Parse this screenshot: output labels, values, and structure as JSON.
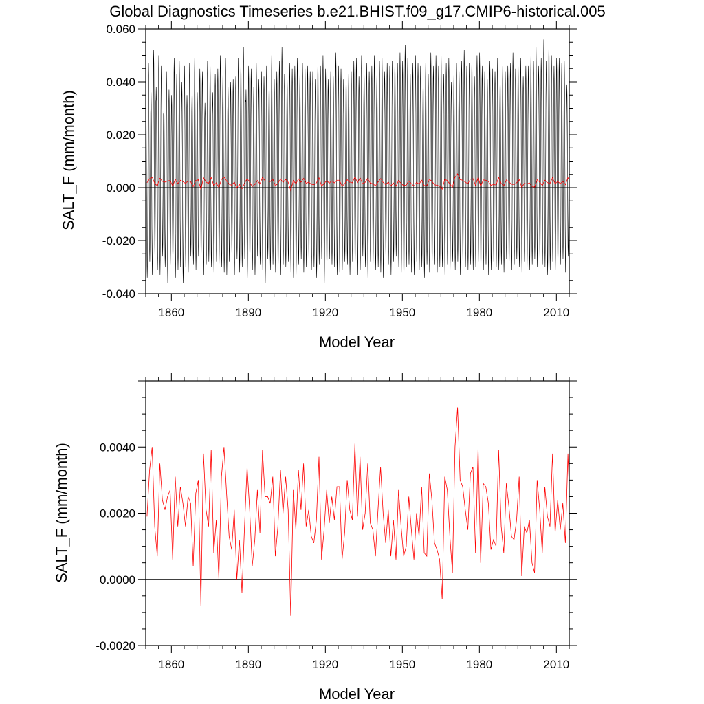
{
  "title": "Global Diagnostics Timeseries b.e21.BHIST.f09_g17.CMIP6-historical.005",
  "colors": {
    "monthly": "#000000",
    "annual": "#ff0000",
    "zero_line": "#000000"
  },
  "chart_data": [
    {
      "type": "line",
      "xlabel": "Model Year",
      "ylabel": "SALT_F (mm/month)",
      "xlim": [
        1850,
        2015
      ],
      "ylim": [
        -0.04,
        0.06
      ],
      "xticks": [
        1860,
        1890,
        1920,
        1950,
        1980,
        2010
      ],
      "xtick_labels": [
        "1860",
        "1890",
        "1920",
        "1950",
        "1980",
        "2010"
      ],
      "yticks": [
        -0.04,
        -0.02,
        0.0,
        0.02,
        0.04,
        0.06
      ],
      "ytick_labels": [
        "-0.040",
        "-0.020",
        "0.000",
        "0.020",
        "0.040",
        "0.060"
      ],
      "series": [
        {
          "kind": "monthly",
          "note_pattern": "seasonal cycle each year",
          "annual_max": [
            0.032,
            0.047,
            0.036,
            0.052,
            0.038,
            0.05,
            0.046,
            0.031,
            0.044,
            0.037,
            0.035,
            0.049,
            0.043,
            0.048,
            0.04,
            0.046,
            0.035,
            0.047,
            0.038,
            0.049,
            0.036,
            0.045,
            0.044,
            0.032,
            0.048,
            0.047,
            0.036,
            0.043,
            0.045,
            0.05,
            0.043,
            0.049,
            0.038,
            0.04,
            0.041,
            0.042,
            0.049,
            0.048,
            0.053,
            0.037,
            0.046,
            0.045,
            0.038,
            0.047,
            0.041,
            0.044,
            0.042,
            0.046,
            0.04,
            0.05,
            0.041,
            0.044,
            0.048,
            0.053,
            0.043,
            0.042,
            0.047,
            0.045,
            0.046,
            0.049,
            0.043,
            0.047,
            0.045,
            0.046,
            0.044,
            0.044,
            0.041,
            0.048,
            0.046,
            0.05,
            0.045,
            0.041,
            0.044,
            0.042,
            0.051,
            0.046,
            0.045,
            0.041,
            0.042,
            0.043,
            0.044,
            0.048,
            0.049,
            0.042,
            0.05,
            0.044,
            0.047,
            0.044,
            0.046,
            0.05,
            0.043,
            0.048,
            0.049,
            0.044,
            0.047,
            0.046,
            0.048,
            0.048,
            0.047,
            0.051,
            0.048,
            0.054,
            0.049,
            0.043,
            0.047,
            0.05,
            0.047,
            0.046,
            0.041,
            0.047,
            0.043,
            0.051,
            0.046,
            0.05,
            0.046,
            0.051,
            0.043,
            0.047,
            0.049,
            0.04,
            0.043,
            0.047,
            0.044,
            0.048,
            0.052,
            0.046,
            0.047,
            0.049,
            0.042,
            0.05,
            0.051,
            0.046,
            0.044,
            0.041,
            0.048,
            0.045,
            0.044,
            0.049,
            0.042,
            0.046,
            0.044,
            0.046,
            0.047,
            0.051,
            0.045,
            0.047,
            0.049,
            0.042,
            0.046,
            0.046,
            0.05,
            0.048,
            0.053,
            0.046,
            0.049,
            0.056,
            0.048,
            0.055,
            0.05,
            0.046,
            0.049,
            0.049,
            0.047,
            0.048,
            0.039
          ],
          "annual_min": [
            -0.034,
            -0.028,
            -0.033,
            -0.027,
            -0.031,
            -0.033,
            -0.026,
            -0.03,
            -0.036,
            -0.029,
            -0.028,
            -0.034,
            -0.031,
            -0.03,
            -0.036,
            -0.03,
            -0.032,
            -0.026,
            -0.029,
            -0.031,
            -0.026,
            -0.027,
            -0.033,
            -0.029,
            -0.028,
            -0.03,
            -0.032,
            -0.028,
            -0.029,
            -0.03,
            -0.032,
            -0.033,
            -0.028,
            -0.026,
            -0.033,
            -0.027,
            -0.032,
            -0.03,
            -0.027,
            -0.034,
            -0.028,
            -0.031,
            -0.033,
            -0.026,
            -0.029,
            -0.031,
            -0.036,
            -0.027,
            -0.031,
            -0.029,
            -0.032,
            -0.031,
            -0.033,
            -0.029,
            -0.03,
            -0.028,
            -0.032,
            -0.034,
            -0.033,
            -0.029,
            -0.027,
            -0.032,
            -0.03,
            -0.028,
            -0.031,
            -0.03,
            -0.034,
            -0.029,
            -0.027,
            -0.036,
            -0.031,
            -0.027,
            -0.029,
            -0.03,
            -0.033,
            -0.032,
            -0.031,
            -0.028,
            -0.029,
            -0.033,
            -0.028,
            -0.03,
            -0.033,
            -0.031,
            -0.026,
            -0.03,
            -0.034,
            -0.028,
            -0.029,
            -0.031,
            -0.03,
            -0.032,
            -0.034,
            -0.027,
            -0.029,
            -0.033,
            -0.028,
            -0.026,
            -0.03,
            -0.032,
            -0.035,
            -0.03,
            -0.029,
            -0.032,
            -0.033,
            -0.028,
            -0.031,
            -0.03,
            -0.034,
            -0.029,
            -0.032,
            -0.03,
            -0.029,
            -0.032,
            -0.03,
            -0.03,
            -0.033,
            -0.029,
            -0.031,
            -0.028,
            -0.031,
            -0.028,
            -0.033,
            -0.029,
            -0.03,
            -0.031,
            -0.029,
            -0.031,
            -0.03,
            -0.028,
            -0.032,
            -0.031,
            -0.029,
            -0.033,
            -0.031,
            -0.028,
            -0.03,
            -0.031,
            -0.029,
            -0.032,
            -0.027,
            -0.03,
            -0.031,
            -0.029,
            -0.027,
            -0.03,
            -0.032,
            -0.028,
            -0.03,
            -0.031,
            -0.029,
            -0.027,
            -0.03,
            -0.028,
            -0.029,
            -0.03,
            -0.033,
            -0.031,
            -0.028,
            -0.031,
            -0.03,
            -0.029,
            -0.027,
            -0.032,
            -0.026
          ]
        },
        {
          "kind": "annual",
          "x_start": 1850,
          "values": [
            0.0019,
            0.0033,
            0.004,
            0.0016,
            0.0007,
            0.0035,
            0.0024,
            0.0021,
            0.0025,
            0.0027,
            0.0006,
            0.0031,
            0.0016,
            0.0028,
            0.0023,
            0.0016,
            0.0025,
            0.0023,
            0.0004,
            0.0026,
            0.003,
            -0.0008,
            0.0038,
            0.0021,
            0.0016,
            0.0039,
            0.0008,
            0.0018,
            0.0,
            0.0031,
            0.004,
            0.0026,
            0.0013,
            0.0009,
            0.0021,
            0.0,
            0.0012,
            -0.0004,
            0.0016,
            0.0034,
            0.0021,
            0.0004,
            0.0012,
            0.0027,
            0.0014,
            0.0039,
            0.0025,
            0.0025,
            0.0023,
            0.0031,
            0.0007,
            0.0016,
            0.0033,
            0.002,
            0.0031,
            0.0021,
            -0.0011,
            0.0027,
            0.0015,
            0.0033,
            0.0021,
            0.0035,
            0.0016,
            0.0021,
            0.0013,
            0.0011,
            0.0018,
            0.0037,
            0.0006,
            0.0015,
            0.0027,
            0.0017,
            0.0025,
            0.0018,
            0.0028,
            0.0028,
            0.0006,
            0.0014,
            0.003,
            0.0021,
            0.0018,
            0.0041,
            0.0019,
            0.0037,
            0.0015,
            0.002,
            0.0035,
            0.0017,
            0.0015,
            0.0007,
            0.0021,
            0.0034,
            0.002,
            0.0011,
            0.0021,
            0.0007,
            0.0018,
            0.0006,
            0.0027,
            0.0016,
            0.0007,
            0.001,
            0.0025,
            0.0015,
            0.0006,
            0.002,
            0.0013,
            0.0028,
            0.0008,
            0.0007,
            0.0032,
            0.0024,
            0.0011,
            0.0009,
            0.0006,
            -0.0006,
            0.0031,
            0.0027,
            0.0013,
            0.0002,
            0.004,
            0.0052,
            0.003,
            0.0028,
            0.0021,
            0.0015,
            0.0032,
            0.0034,
            0.0008,
            0.004,
            0.0005,
            0.0029,
            0.0028,
            0.0023,
            0.0009,
            0.0012,
            0.001,
            0.0039,
            0.0016,
            0.0008,
            0.0029,
            0.0022,
            0.0013,
            0.0012,
            0.0018,
            0.0031,
            0.0001,
            0.0016,
            0.0014,
            0.0018,
            0.0005,
            0.0002,
            0.003,
            0.0021,
            0.0008,
            0.0028,
            0.0019,
            0.0016,
            0.0038,
            0.0014,
            0.0024,
            0.0015,
            0.0023,
            0.0011,
            0.0038,
            0.0017,
            0.0041,
            0.0016,
            0.001,
            0.0028,
            0.0021
          ],
          "yticks_override": true
        }
      ]
    },
    {
      "type": "line",
      "xlabel": "Model Year",
      "ylabel": "SALT_F (mm/month)",
      "xlim": [
        1850,
        2015
      ],
      "ylim": [
        -0.002,
        0.006
      ],
      "xticks": [
        1860,
        1890,
        1920,
        1950,
        1980,
        2010
      ],
      "xtick_labels": [
        "1860",
        "1890",
        "1920",
        "1950",
        "1980",
        "2010"
      ],
      "yticks": [
        -0.002,
        0.0,
        0.002,
        0.004
      ],
      "ytick_labels": [
        "-0.0020",
        "0.0000",
        "0.0020",
        "0.0040"
      ],
      "series": [
        {
          "kind": "annual",
          "x_start": 1850,
          "values_ref": "same as top annual"
        }
      ]
    }
  ]
}
